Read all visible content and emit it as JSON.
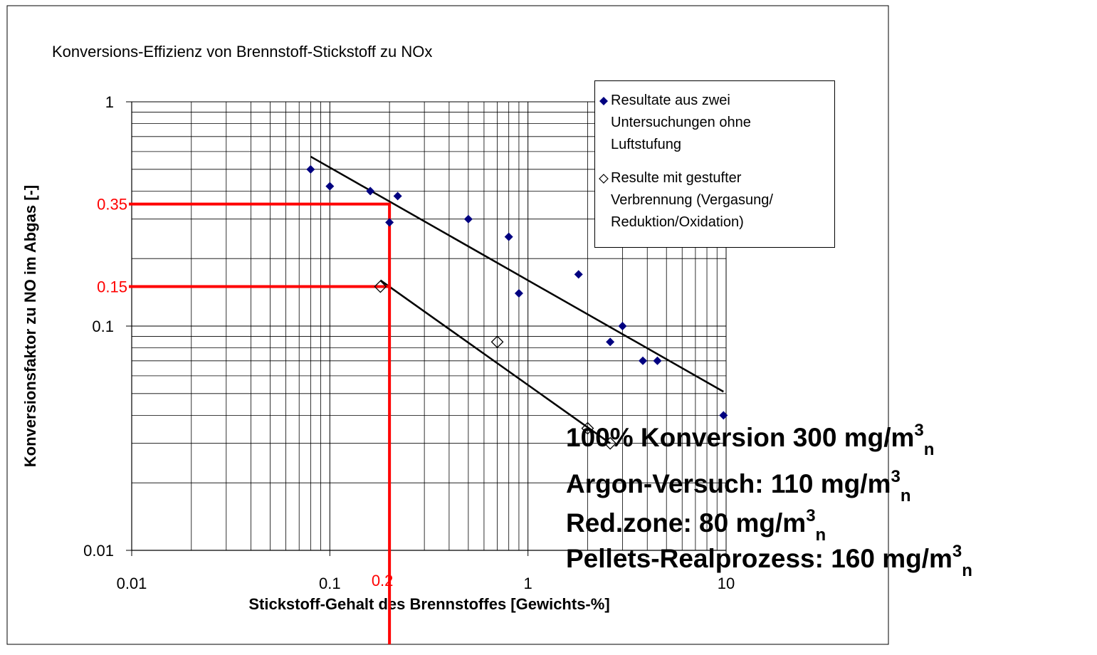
{
  "chart_data": {
    "type": "scatter",
    "title": "Konversions-Effizienz von Brennstoff-Stickstoff zu NOx",
    "x_label": "Stickstoff-Gehalt des Brennstoffes [Gewichts-%]",
    "y_label": "Konversionsfaktor zu NO im Abgas [-]",
    "xscale": "log",
    "yscale": "log",
    "xlim": [
      0.01,
      10
    ],
    "ylim": [
      0.01,
      1
    ],
    "xticks": [
      0.01,
      0.1,
      1,
      10
    ],
    "yticks": [
      0.01,
      0.1,
      1
    ],
    "grid": true,
    "legend": "upper right",
    "series": [
      {
        "name": "Resultate aus zwei Untersuchungen ohne Luftstufung",
        "color": "#000080",
        "marker": "filled-diamond",
        "x": [
          0.08,
          0.1,
          0.16,
          0.22,
          0.2,
          0.5,
          0.8,
          0.9,
          1.8,
          2.6,
          3,
          3.8,
          4.5,
          9.7
        ],
        "values": [
          0.5,
          0.42,
          0.4,
          0.38,
          0.29,
          0.3,
          0.25,
          0.14,
          0.17,
          0.085,
          0.1,
          0.07,
          0.07,
          0.04
        ]
      },
      {
        "name": "Resulte mit gestufter Verbrennung (Vergasung/ Reduktion/Oxidation)",
        "color": "#000000",
        "marker": "open-diamond",
        "x": [
          0.18,
          0.7,
          2,
          2.6
        ],
        "values": [
          0.15,
          0.085,
          0.035,
          0.03
        ]
      }
    ],
    "trendlines": [
      {
        "color": "#000000",
        "x": [
          0.08,
          9.7
        ],
        "values": [
          0.57,
          0.051
        ]
      },
      {
        "color": "#000000",
        "x": [
          0.18,
          2.6
        ],
        "values": [
          0.16,
          0.03
        ]
      }
    ],
    "reference": {
      "color": "#ff0000",
      "x": 0.2,
      "y": [
        0.35,
        0.15
      ]
    },
    "annotations": [
      {
        "text": "100% Konversion 300 mg/m",
        "sup": "3",
        "sub": "n"
      },
      {
        "text": "Argon-Versuch: 110 mg/m",
        "sup": "3",
        "sub": "n"
      },
      {
        "text": "Red.zone: 80 mg/m",
        "sup": "3",
        "sub": "n"
      },
      {
        "text": "Pellets-Realprozess: 160 mg/m",
        "sup": "3",
        "sub": "n"
      }
    ]
  }
}
